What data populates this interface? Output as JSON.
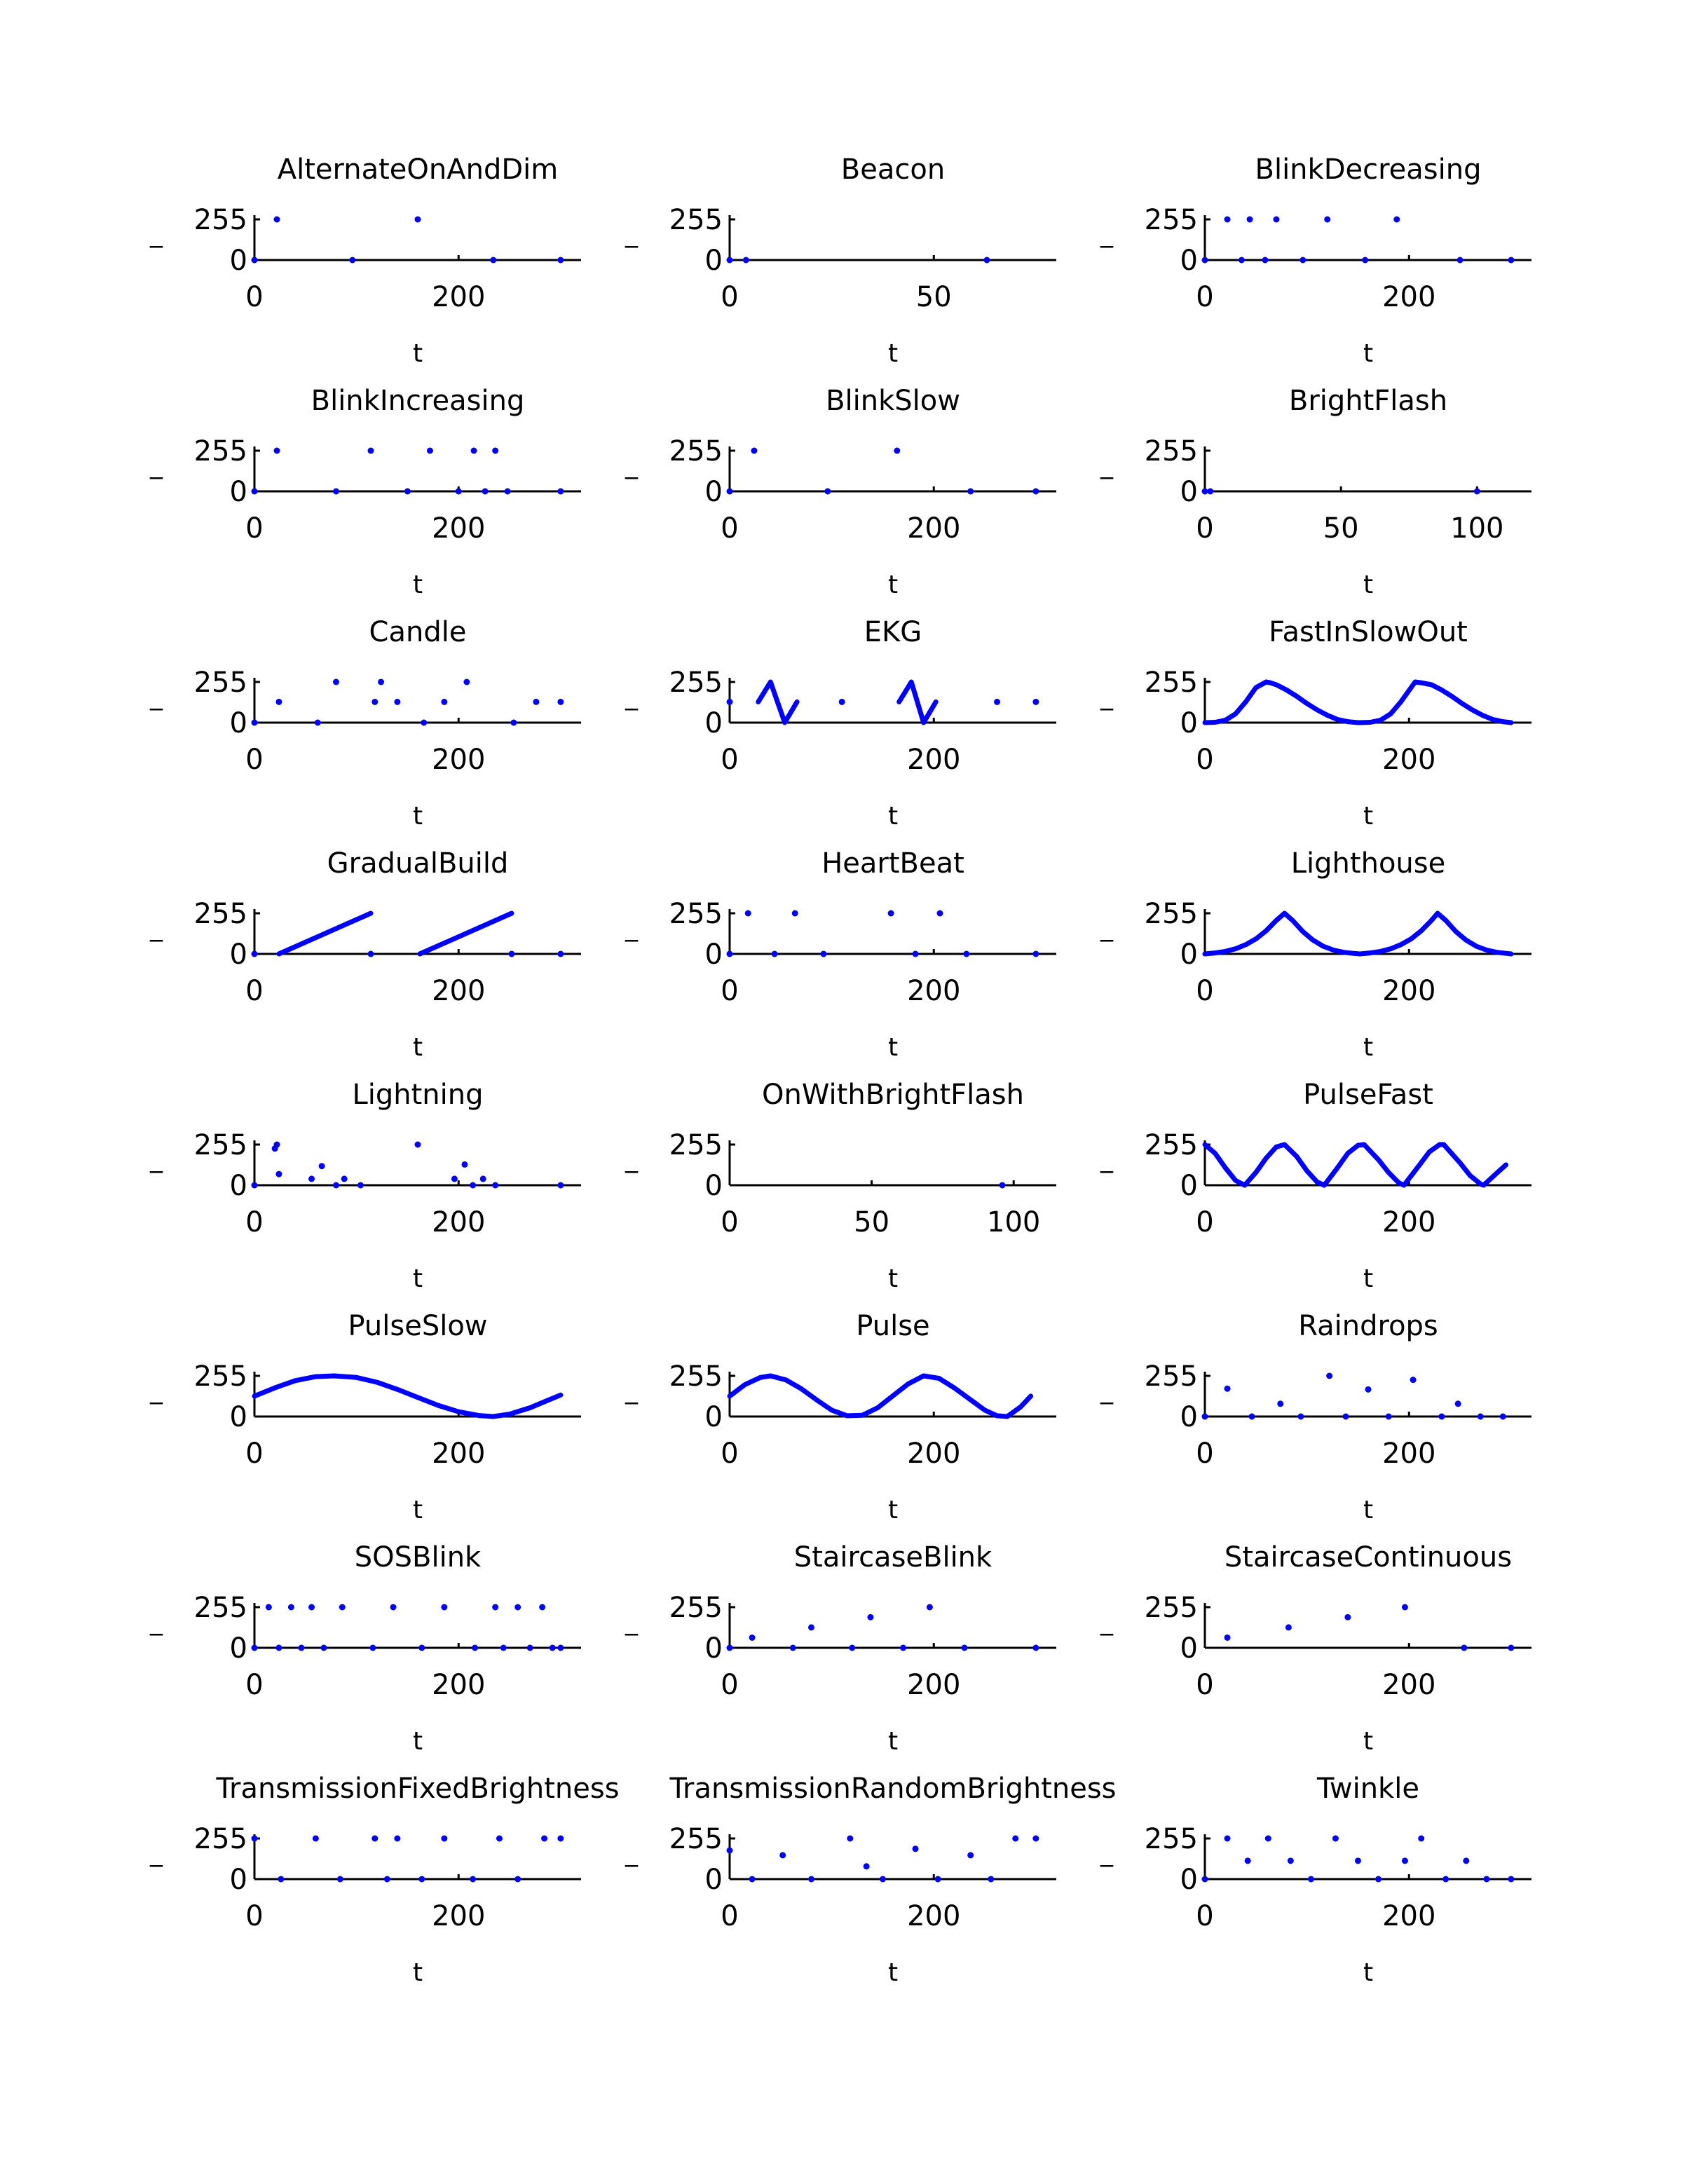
{
  "figure": {
    "background": "#ffffff",
    "series_color": "#0000ff"
  },
  "chart_data": [
    {
      "type": "scatter",
      "title": "AlternateOnAndDim",
      "xlabel": "t",
      "ylabel": "_",
      "yticks": [
        0,
        255
      ],
      "ylim": [
        0,
        255
      ],
      "xticks": [
        0,
        200
      ],
      "xlim": [
        0,
        320
      ],
      "x": [
        0,
        22,
        96,
        160,
        234,
        300
      ],
      "y": [
        0,
        255,
        0,
        255,
        0,
        0
      ]
    },
    {
      "type": "scatter",
      "title": "Beacon",
      "xlabel": "t",
      "ylabel": "_",
      "yticks": [
        0,
        255
      ],
      "ylim": [
        0,
        255
      ],
      "xticks": [
        0,
        50
      ],
      "xlim": [
        0,
        80
      ],
      "x": [
        0,
        4,
        63
      ],
      "y": [
        0,
        0,
        0
      ]
    },
    {
      "type": "scatter",
      "title": "BlinkDecreasing",
      "xlabel": "t",
      "ylabel": "_",
      "yticks": [
        0,
        255
      ],
      "ylim": [
        0,
        255
      ],
      "xticks": [
        0,
        200
      ],
      "xlim": [
        0,
        320
      ],
      "x": [
        0,
        22,
        36,
        44,
        59,
        70,
        96,
        120,
        157,
        188,
        250,
        300
      ],
      "y": [
        0,
        255,
        0,
        255,
        0,
        255,
        0,
        255,
        0,
        255,
        0,
        0
      ]
    },
    {
      "type": "scatter",
      "title": "BlinkIncreasing",
      "xlabel": "t",
      "ylabel": "_",
      "yticks": [
        0,
        255
      ],
      "ylim": [
        0,
        255
      ],
      "xticks": [
        0,
        200
      ],
      "xlim": [
        0,
        320
      ],
      "x": [
        0,
        22,
        80,
        114,
        150,
        172,
        200,
        215,
        226,
        236,
        248,
        300
      ],
      "y": [
        0,
        255,
        0,
        255,
        0,
        255,
        0,
        255,
        0,
        255,
        0,
        0
      ]
    },
    {
      "type": "scatter",
      "title": "BlinkSlow",
      "xlabel": "t",
      "ylabel": "_",
      "yticks": [
        0,
        255
      ],
      "ylim": [
        0,
        255
      ],
      "xticks": [
        0,
        200
      ],
      "xlim": [
        0,
        320
      ],
      "x": [
        0,
        24,
        96,
        164,
        236,
        300
      ],
      "y": [
        0,
        255,
        0,
        255,
        0,
        0
      ]
    },
    {
      "type": "scatter",
      "title": "BrightFlash",
      "xlabel": "t",
      "ylabel": "_",
      "yticks": [
        0,
        255
      ],
      "ylim": [
        0,
        255
      ],
      "xticks": [
        0,
        50,
        100
      ],
      "xlim": [
        0,
        120
      ],
      "x": [
        0,
        2,
        100
      ],
      "y": [
        0,
        0,
        0
      ]
    },
    {
      "type": "scatter",
      "title": "Candle",
      "xlabel": "t",
      "ylabel": "_",
      "yticks": [
        0,
        255
      ],
      "ylim": [
        0,
        255
      ],
      "xticks": [
        0,
        200
      ],
      "xlim": [
        0,
        320
      ],
      "x": [
        0,
        24,
        62,
        80,
        118,
        124,
        140,
        166,
        186,
        208,
        254,
        276,
        300
      ],
      "y": [
        0,
        130,
        0,
        255,
        130,
        255,
        130,
        0,
        130,
        255,
        0,
        130,
        130
      ]
    },
    {
      "type": "line",
      "title": "EKG",
      "xlabel": "t",
      "ylabel": "_",
      "yticks": [
        0,
        255
      ],
      "ylim": [
        0,
        255
      ],
      "xticks": [
        0,
        200
      ],
      "xlim": [
        0,
        320
      ],
      "series": [
        {
          "x": [
            28,
            40,
            54,
            66
          ],
          "y": [
            130,
            255,
            0,
            130
          ]
        },
        {
          "x": [
            166,
            178,
            190,
            202
          ],
          "y": [
            130,
            255,
            0,
            130
          ]
        }
      ],
      "points": {
        "x": [
          0,
          110,
          262,
          300
        ],
        "y": [
          130,
          130,
          130,
          130
        ]
      }
    },
    {
      "type": "line",
      "title": "FastInSlowOut",
      "xlabel": "t",
      "ylabel": "_",
      "yticks": [
        0,
        255
      ],
      "ylim": [
        0,
        255
      ],
      "xticks": [
        0,
        200
      ],
      "xlim": [
        0,
        320
      ],
      "series": [
        {
          "x": [
            0,
            10,
            20,
            30,
            40,
            50,
            60,
            64,
            70,
            80,
            90,
            100,
            110,
            120,
            130,
            140,
            150,
            152
          ],
          "y": [
            0,
            2,
            15,
            55,
            130,
            220,
            255,
            250,
            238,
            205,
            165,
            120,
            80,
            46,
            20,
            6,
            0,
            0
          ]
        },
        {
          "x": [
            152,
            162,
            172,
            182,
            192,
            202,
            206,
            212,
            222,
            232,
            242,
            252,
            262,
            272,
            282,
            292,
            300
          ],
          "y": [
            0,
            2,
            15,
            55,
            130,
            220,
            255,
            250,
            238,
            205,
            165,
            120,
            80,
            46,
            20,
            6,
            0
          ]
        }
      ]
    },
    {
      "type": "line",
      "title": "GradualBuild",
      "xlabel": "t",
      "ylabel": "_",
      "yticks": [
        0,
        255
      ],
      "ylim": [
        0,
        255
      ],
      "xticks": [
        0,
        200
      ],
      "xlim": [
        0,
        320
      ],
      "series": [
        {
          "x": [
            24,
            114
          ],
          "y": [
            0,
            255
          ]
        },
        {
          "x": [
            162,
            252
          ],
          "y": [
            0,
            255
          ]
        }
      ],
      "points": {
        "x": [
          0,
          114,
          252,
          300
        ],
        "y": [
          0,
          0,
          0,
          0
        ]
      }
    },
    {
      "type": "scatter",
      "title": "HeartBeat",
      "xlabel": "t",
      "ylabel": "_",
      "yticks": [
        0,
        255
      ],
      "ylim": [
        0,
        255
      ],
      "xticks": [
        0,
        200
      ],
      "xlim": [
        0,
        320
      ],
      "x": [
        0,
        18,
        44,
        64,
        92,
        158,
        182,
        206,
        232,
        300
      ],
      "y": [
        0,
        255,
        0,
        255,
        0,
        255,
        0,
        255,
        0,
        0
      ]
    },
    {
      "type": "line",
      "title": "Lighthouse",
      "xlabel": "t",
      "ylabel": "_",
      "yticks": [
        0,
        255
      ],
      "ylim": [
        0,
        255
      ],
      "xticks": [
        0,
        200
      ],
      "xlim": [
        0,
        320
      ],
      "series": [
        {
          "x": [
            0,
            10,
            20,
            30,
            40,
            50,
            60,
            70,
            78,
            86,
            96,
            106,
            116,
            126,
            136,
            146,
            152
          ],
          "y": [
            0,
            6,
            16,
            32,
            58,
            94,
            145,
            210,
            255,
            210,
            140,
            86,
            48,
            24,
            10,
            3,
            0
          ]
        },
        {
          "x": [
            152,
            162,
            172,
            182,
            192,
            202,
            212,
            222,
            228,
            236,
            246,
            256,
            266,
            276,
            286,
            296,
            300
          ],
          "y": [
            0,
            6,
            16,
            32,
            58,
            94,
            145,
            210,
            255,
            210,
            140,
            86,
            48,
            24,
            10,
            3,
            0
          ]
        }
      ]
    },
    {
      "type": "scatter",
      "title": "Lightning",
      "xlabel": "t",
      "ylabel": "_",
      "yticks": [
        0,
        255
      ],
      "ylim": [
        0,
        255
      ],
      "xticks": [
        0,
        200
      ],
      "xlim": [
        0,
        320
      ],
      "x": [
        0,
        20,
        22,
        24,
        56,
        66,
        80,
        88,
        104,
        160,
        196,
        206,
        214,
        224,
        236,
        300
      ],
      "y": [
        0,
        230,
        255,
        70,
        40,
        120,
        0,
        40,
        0,
        255,
        40,
        130,
        0,
        40,
        0,
        0
      ]
    },
    {
      "type": "scatter",
      "title": "OnWithBrightFlash",
      "xlabel": "t",
      "ylabel": "_",
      "yticks": [
        0,
        255
      ],
      "ylim": [
        0,
        255
      ],
      "xticks": [
        0,
        50,
        100
      ],
      "xlim": [
        0,
        115
      ],
      "x": [
        96
      ],
      "y": [
        0
      ]
    },
    {
      "type": "line",
      "title": "PulseFast",
      "xlabel": "t",
      "ylabel": "_",
      "yticks": [
        0,
        255
      ],
      "ylim": [
        0,
        255
      ],
      "xticks": [
        0,
        200
      ],
      "xlim": [
        0,
        320
      ],
      "series": [
        {
          "x": [
            0,
            10,
            20,
            30,
            39,
            50,
            60,
            70,
            78,
            90,
            100,
            110,
            117,
            130,
            140,
            150,
            156,
            170,
            180,
            190,
            195,
            210,
            220,
            230,
            234,
            250,
            260,
            270,
            273,
            285,
            295
          ],
          "y": [
            255,
            200,
            110,
            30,
            0,
            80,
            170,
            240,
            255,
            180,
            90,
            20,
            0,
            110,
            200,
            250,
            255,
            160,
            80,
            15,
            0,
            125,
            210,
            255,
            255,
            140,
            60,
            8,
            0,
            70,
            128
          ]
        }
      ]
    },
    {
      "type": "line",
      "title": "PulseSlow",
      "xlabel": "t",
      "ylabel": "_",
      "yticks": [
        0,
        255
      ],
      "ylim": [
        0,
        255
      ],
      "xticks": [
        0,
        200
      ],
      "xlim": [
        0,
        320
      ],
      "series": [
        {
          "x": [
            0,
            20,
            40,
            60,
            78,
            100,
            120,
            140,
            160,
            180,
            200,
            220,
            234,
            250,
            270,
            285,
            300
          ],
          "y": [
            128,
            180,
            225,
            250,
            255,
            245,
            215,
            170,
            120,
            70,
            30,
            6,
            0,
            15,
            55,
            95,
            135
          ]
        }
      ]
    },
    {
      "type": "line",
      "title": "Pulse",
      "xlabel": "t",
      "ylabel": "_",
      "yticks": [
        0,
        255
      ],
      "ylim": [
        0,
        255
      ],
      "xticks": [
        0,
        200
      ],
      "xlim": [
        0,
        320
      ],
      "series": [
        {
          "x": [
            0,
            15,
            30,
            40,
            55,
            70,
            85,
            100,
            115,
            130,
            145,
            160,
            175,
            190,
            205,
            220,
            235,
            250,
            262,
            272,
            285,
            295
          ],
          "y": [
            128,
            200,
            245,
            255,
            230,
            175,
            105,
            40,
            5,
            8,
            55,
            130,
            205,
            255,
            240,
            180,
            110,
            40,
            5,
            0,
            60,
            128
          ]
        }
      ]
    },
    {
      "type": "scatter",
      "title": "Raindrops",
      "xlabel": "t",
      "ylabel": "_",
      "yticks": [
        0,
        255
      ],
      "ylim": [
        0,
        255
      ],
      "xticks": [
        0,
        200
      ],
      "xlim": [
        0,
        320
      ],
      "x": [
        0,
        22,
        46,
        74,
        94,
        122,
        138,
        160,
        180,
        204,
        232,
        248,
        270,
        292
      ],
      "y": [
        0,
        175,
        0,
        80,
        0,
        255,
        0,
        170,
        0,
        230,
        0,
        80,
        0,
        0
      ]
    },
    {
      "type": "scatter",
      "title": "SOSBlink",
      "xlabel": "t",
      "ylabel": "_",
      "yticks": [
        0,
        255
      ],
      "ylim": [
        0,
        255
      ],
      "xticks": [
        0,
        200
      ],
      "xlim": [
        0,
        320
      ],
      "x": [
        0,
        14,
        24,
        36,
        46,
        56,
        68,
        86,
        116,
        136,
        164,
        186,
        216,
        236,
        244,
        258,
        270,
        282,
        292,
        300
      ],
      "y": [
        0,
        255,
        0,
        255,
        0,
        255,
        0,
        255,
        0,
        255,
        0,
        255,
        0,
        255,
        0,
        255,
        0,
        255,
        0,
        0
      ]
    },
    {
      "type": "scatter",
      "title": "StaircaseBlink",
      "xlabel": "t",
      "ylabel": "_",
      "yticks": [
        0,
        255
      ],
      "ylim": [
        0,
        255
      ],
      "xticks": [
        0,
        200
      ],
      "xlim": [
        0,
        320
      ],
      "x": [
        0,
        22,
        62,
        80,
        120,
        138,
        170,
        196,
        230,
        300
      ],
      "y": [
        0,
        64,
        0,
        128,
        0,
        192,
        0,
        255,
        0,
        0
      ]
    },
    {
      "type": "scatter",
      "title": "StaircaseContinuous",
      "xlabel": "t",
      "ylabel": "_",
      "yticks": [
        0,
        255
      ],
      "ylim": [
        0,
        255
      ],
      "xticks": [
        0,
        200
      ],
      "xlim": [
        0,
        320
      ],
      "x": [
        22,
        82,
        140,
        196,
        254,
        300
      ],
      "y": [
        64,
        128,
        192,
        255,
        0,
        0
      ]
    },
    {
      "type": "scatter",
      "title": "TransmissionFixedBrightness",
      "xlabel": "t",
      "ylabel": "_",
      "yticks": [
        0,
        255
      ],
      "ylim": [
        0,
        255
      ],
      "xticks": [
        0,
        200
      ],
      "xlim": [
        0,
        320
      ],
      "x": [
        0,
        26,
        60,
        84,
        118,
        130,
        140,
        164,
        186,
        214,
        240,
        258,
        284,
        300
      ],
      "y": [
        255,
        0,
        255,
        0,
        255,
        0,
        255,
        0,
        255,
        0,
        255,
        0,
        255,
        255
      ]
    },
    {
      "type": "scatter",
      "title": "TransmissionRandomBrightness",
      "xlabel": "t",
      "ylabel": "_",
      "yticks": [
        0,
        255
      ],
      "ylim": [
        0,
        255
      ],
      "xticks": [
        0,
        200
      ],
      "xlim": [
        0,
        320
      ],
      "x": [
        0,
        22,
        52,
        80,
        118,
        134,
        150,
        182,
        204,
        236,
        256,
        280,
        300
      ],
      "y": [
        180,
        0,
        150,
        0,
        255,
        80,
        0,
        190,
        0,
        150,
        0,
        255,
        255
      ]
    },
    {
      "type": "scatter",
      "title": "Twinkle",
      "xlabel": "t",
      "ylabel": "_",
      "yticks": [
        0,
        255
      ],
      "ylim": [
        0,
        255
      ],
      "xticks": [
        0,
        200
      ],
      "xlim": [
        0,
        320
      ],
      "x": [
        0,
        22,
        42,
        62,
        84,
        104,
        128,
        150,
        170,
        196,
        212,
        236,
        256,
        276,
        300
      ],
      "y": [
        0,
        255,
        115,
        255,
        115,
        0,
        255,
        115,
        0,
        115,
        255,
        0,
        115,
        0,
        0
      ]
    }
  ]
}
